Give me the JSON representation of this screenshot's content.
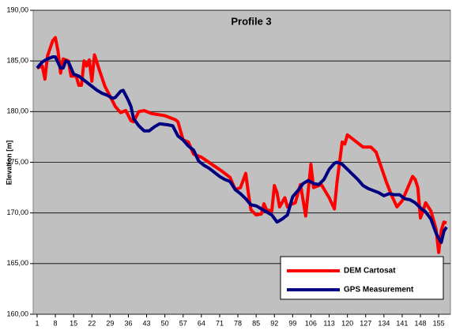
{
  "chart_data": {
    "type": "line",
    "title": "Profile 3",
    "y_label": "Elevation [m]",
    "xlim": [
      -0.5,
      159.5
    ],
    "xticks": [
      1,
      8,
      15,
      22,
      29,
      36,
      43,
      50,
      57,
      64,
      71,
      78,
      85,
      92,
      99,
      106,
      113,
      120,
      127,
      134,
      141,
      148,
      155
    ],
    "ylim": [
      160,
      190
    ],
    "yticks": [
      {
        "value": 160,
        "label": "160,00"
      },
      {
        "value": 165,
        "label": "165,00"
      },
      {
        "value": 170,
        "label": "170,00"
      },
      {
        "value": 175,
        "label": "175,00"
      },
      {
        "value": 180,
        "label": "180,00"
      },
      {
        "value": 185,
        "label": "185,00"
      },
      {
        "value": 190,
        "label": "190,00"
      }
    ],
    "grid": true,
    "legend": "lower right",
    "series": [
      {
        "name": "DEM Cartosat",
        "color": "#ff0000",
        "x": [
          1,
          3,
          4,
          5,
          7,
          8,
          9,
          10,
          11,
          13,
          14,
          16,
          17,
          18,
          19,
          20,
          21,
          22,
          23,
          25,
          27,
          29,
          31,
          33,
          35,
          37,
          38,
          40,
          42,
          45,
          50,
          54,
          55,
          57,
          59,
          61,
          64,
          68,
          72,
          75,
          77,
          79,
          81,
          82,
          83,
          85,
          87,
          88,
          89,
          91,
          92,
          93,
          94,
          96,
          97,
          98,
          100,
          102,
          104,
          106,
          107,
          110,
          113,
          115,
          116,
          118,
          119,
          120,
          122,
          124,
          126,
          129,
          131,
          133,
          135,
          137,
          139,
          141,
          143,
          145,
          146,
          147,
          148,
          149,
          150,
          152,
          154,
          155,
          156,
          157,
          158
        ],
        "values": [
          184.3,
          184.5,
          183.2,
          185.5,
          187.0,
          187.3,
          186,
          183.8,
          185.2,
          185,
          183.5,
          183.5,
          182.6,
          182.6,
          185,
          184.5,
          185.1,
          183,
          185.6,
          184,
          182.5,
          181.5,
          180.5,
          179.9,
          180.1,
          179.1,
          179,
          180,
          180.1,
          179.8,
          179.6,
          179.2,
          179.0,
          177.2,
          177,
          175.8,
          175.5,
          174.8,
          174.1,
          173.5,
          172.3,
          172.5,
          173.9,
          172,
          170.3,
          169.8,
          169.9,
          170.9,
          170.3,
          170.2,
          172.7,
          172,
          170.6,
          171.5,
          170.6,
          170.8,
          171,
          172.8,
          169.7,
          174.8,
          172.5,
          172.8,
          171.5,
          170.4,
          173,
          177,
          176.8,
          177.7,
          177.3,
          176.9,
          176.5,
          176.5,
          176,
          174.5,
          173,
          171.7,
          170.6,
          171.2,
          172.4,
          173.6,
          173.3,
          172.5,
          169.5,
          170.2,
          171,
          170.2,
          168.4,
          166.1,
          168.3,
          169.1,
          169
        ]
      },
      {
        "name": "GPS Measurement",
        "color": "#000080",
        "x": [
          1,
          3,
          5,
          7,
          8,
          10,
          11,
          12,
          13,
          15,
          17,
          20,
          22,
          24,
          26,
          28,
          30,
          31,
          33,
          34,
          36,
          37,
          38,
          40,
          42,
          44,
          46,
          48,
          51,
          53,
          55,
          57,
          59,
          61,
          63,
          65,
          67,
          69,
          71,
          73,
          75,
          77,
          79,
          81,
          83,
          85,
          87,
          89,
          91,
          93,
          95,
          97,
          99,
          101,
          103,
          105,
          107,
          109,
          111,
          113,
          115,
          116,
          118,
          120,
          122,
          124,
          126,
          128,
          130,
          132,
          134,
          136,
          138,
          140,
          142,
          144,
          146,
          148,
          150,
          152,
          154,
          155,
          156,
          157,
          158
        ],
        "values": [
          184.3,
          184.9,
          185.2,
          185.4,
          185.4,
          184.3,
          184.3,
          185,
          184.9,
          183.7,
          183.5,
          182.9,
          182.5,
          182.1,
          181.8,
          181.6,
          181.3,
          181.4,
          182,
          182.1,
          181.1,
          180.5,
          179.3,
          178.6,
          178.1,
          178.1,
          178.5,
          178.8,
          178.7,
          178.6,
          177.6,
          177.2,
          176.6,
          176.2,
          175.1,
          174.7,
          174.4,
          174,
          173.6,
          173.3,
          173.1,
          172.3,
          171.9,
          171.4,
          170.8,
          170.7,
          170.4,
          170.1,
          169.8,
          169.1,
          169.4,
          169.8,
          171.6,
          172.2,
          172.9,
          173.2,
          172.9,
          172.8,
          173.3,
          174.3,
          174.9,
          175,
          174.8,
          174.3,
          173.8,
          173.3,
          172.7,
          172.4,
          172.2,
          172,
          171.7,
          171.9,
          171.8,
          171.8,
          171.4,
          171.3,
          171,
          170.5,
          170.1,
          169.4,
          168,
          167.5,
          167.1,
          168.2,
          168.6
        ]
      }
    ]
  }
}
